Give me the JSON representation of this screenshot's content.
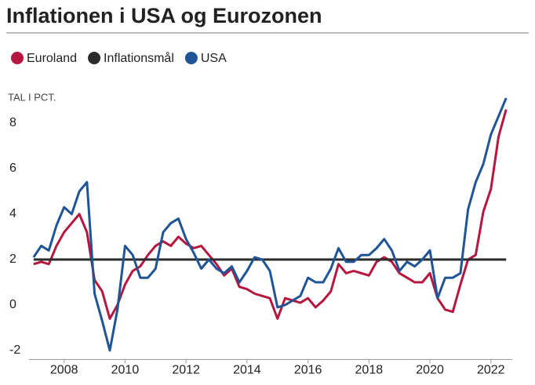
{
  "chart_data": {
    "type": "line",
    "title": "Inflationen i USA og Eurozonen",
    "y_label": "TAL I PCT.",
    "x": [
      2007.0,
      2007.25,
      2007.5,
      2007.75,
      2008.0,
      2008.25,
      2008.5,
      2008.75,
      2009.0,
      2009.25,
      2009.5,
      2009.75,
      2010.0,
      2010.25,
      2010.5,
      2010.75,
      2011.0,
      2011.25,
      2011.5,
      2011.75,
      2012.0,
      2012.25,
      2012.5,
      2012.75,
      2013.0,
      2013.25,
      2013.5,
      2013.75,
      2014.0,
      2014.25,
      2014.5,
      2014.75,
      2015.0,
      2015.25,
      2015.5,
      2015.75,
      2016.0,
      2016.25,
      2016.5,
      2016.75,
      2017.0,
      2017.25,
      2017.5,
      2017.75,
      2018.0,
      2018.25,
      2018.5,
      2018.75,
      2019.0,
      2019.25,
      2019.5,
      2019.75,
      2020.0,
      2020.25,
      2020.5,
      2020.75,
      2021.0,
      2021.25,
      2021.5,
      2021.75,
      2022.0,
      2022.25,
      2022.5
    ],
    "series": [
      {
        "name": "Euroland",
        "color": "#b5173f",
        "values": [
          1.8,
          1.9,
          1.8,
          2.6,
          3.2,
          3.6,
          4.0,
          3.2,
          1.1,
          0.6,
          -0.6,
          0.0,
          0.9,
          1.5,
          1.7,
          2.2,
          2.6,
          2.8,
          2.6,
          3.0,
          2.7,
          2.5,
          2.6,
          2.2,
          1.8,
          1.3,
          1.6,
          0.8,
          0.7,
          0.5,
          0.4,
          0.3,
          -0.6,
          0.3,
          0.2,
          0.1,
          0.3,
          -0.1,
          0.2,
          0.6,
          1.8,
          1.4,
          1.5,
          1.4,
          1.3,
          1.9,
          2.1,
          1.9,
          1.4,
          1.2,
          1.0,
          1.0,
          1.4,
          0.3,
          -0.2,
          -0.3,
          0.9,
          2.0,
          2.2,
          4.1,
          5.1,
          7.4,
          8.6
        ]
      },
      {
        "name": "Inflationsmål",
        "color": "#2b2b2b",
        "x": [
          2007.0,
          2022.5
        ],
        "values": [
          2,
          2
        ]
      },
      {
        "name": "USA",
        "color": "#1f5597",
        "values": [
          2.1,
          2.6,
          2.4,
          3.5,
          4.3,
          4.0,
          5.0,
          5.4,
          0.5,
          -0.7,
          -2.0,
          -0.2,
          2.6,
          2.2,
          1.2,
          1.2,
          1.6,
          3.2,
          3.6,
          3.8,
          2.9,
          2.3,
          1.6,
          2.0,
          1.6,
          1.4,
          1.7,
          1.0,
          1.5,
          2.1,
          2.0,
          1.5,
          -0.1,
          0.0,
          0.2,
          0.4,
          1.2,
          1.0,
          1.0,
          1.6,
          2.5,
          1.9,
          1.9,
          2.2,
          2.2,
          2.5,
          2.9,
          2.4,
          1.5,
          1.9,
          1.7,
          2.0,
          2.4,
          0.3,
          1.2,
          1.2,
          1.4,
          4.2,
          5.4,
          6.2,
          7.5,
          8.3,
          9.1
        ]
      }
    ],
    "xlim": [
      2006.85,
      2022.7
    ],
    "xticks": [
      2008,
      2010,
      2012,
      2014,
      2016,
      2018,
      2020,
      2022
    ],
    "ylim": [
      -2.5,
      9.3
    ],
    "yticks": [
      -2,
      0,
      2,
      4,
      6,
      8
    ],
    "grid": false
  }
}
